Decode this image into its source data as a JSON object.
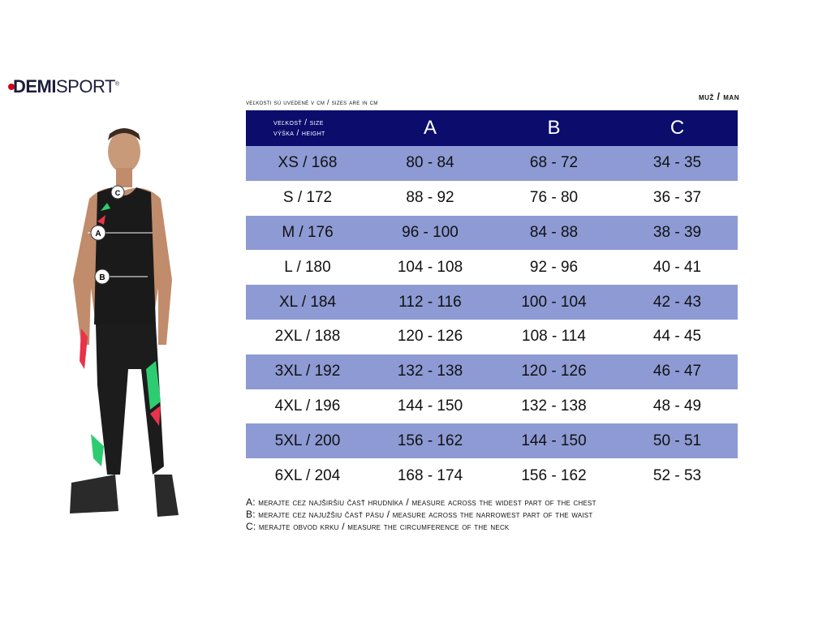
{
  "brand": {
    "logo_bold": "DEMI",
    "logo_light": "SPORT",
    "registered": "®",
    "accent": "#d0021b"
  },
  "units_note": "veľkosti sú uvedené v cm / sizes are in cm",
  "gender": "muž / man",
  "colors": {
    "header": "#0b0c6c",
    "stripe": "#8d9ad4"
  },
  "table": {
    "header_size_line1": "veľkosť / size",
    "header_size_line2": "výška / height",
    "columns": [
      "A",
      "B",
      "C"
    ],
    "rows": [
      {
        "size": "XS / 168",
        "a": "80 - 84",
        "b": "68 - 72",
        "c": "34 - 35"
      },
      {
        "size": "S / 172",
        "a": "88 - 92",
        "b": "76 - 80",
        "c": "36 - 37"
      },
      {
        "size": "M / 176",
        "a": "96 - 100",
        "b": "84 - 88",
        "c": "38 - 39"
      },
      {
        "size": "L / 180",
        "a": "104 - 108",
        "b": "92 - 96",
        "c": "40 - 41"
      },
      {
        "size": "XL / 184",
        "a": "112 - 116",
        "b": "100 - 104",
        "c": "42 - 43"
      },
      {
        "size": "2XL / 188",
        "a": "120 - 126",
        "b": "108 - 114",
        "c": "44 - 45"
      },
      {
        "size": "3XL / 192",
        "a": "132 - 138",
        "b": "120 - 126",
        "c": "46 - 47"
      },
      {
        "size": "4XL / 196",
        "a": "144 - 150",
        "b": "132 - 138",
        "c": "48 - 49"
      },
      {
        "size": "5XL / 200",
        "a": "156 - 162",
        "b": "144 - 150",
        "c": "50 - 51"
      },
      {
        "size": "6XL / 204",
        "a": "168 - 174",
        "b": "156 - 162",
        "c": "52 - 53"
      }
    ]
  },
  "figure_markers": [
    "C",
    "A",
    "B"
  ],
  "notes": [
    "A: merajte cez najširšiu časť hrudníka / measure across the widest part of the chest",
    "B: merajte cez najužšiu časť pásu / measure across the narrowest part of the waist",
    "C: merajte obvod krku / measure the circumference of the neck"
  ]
}
